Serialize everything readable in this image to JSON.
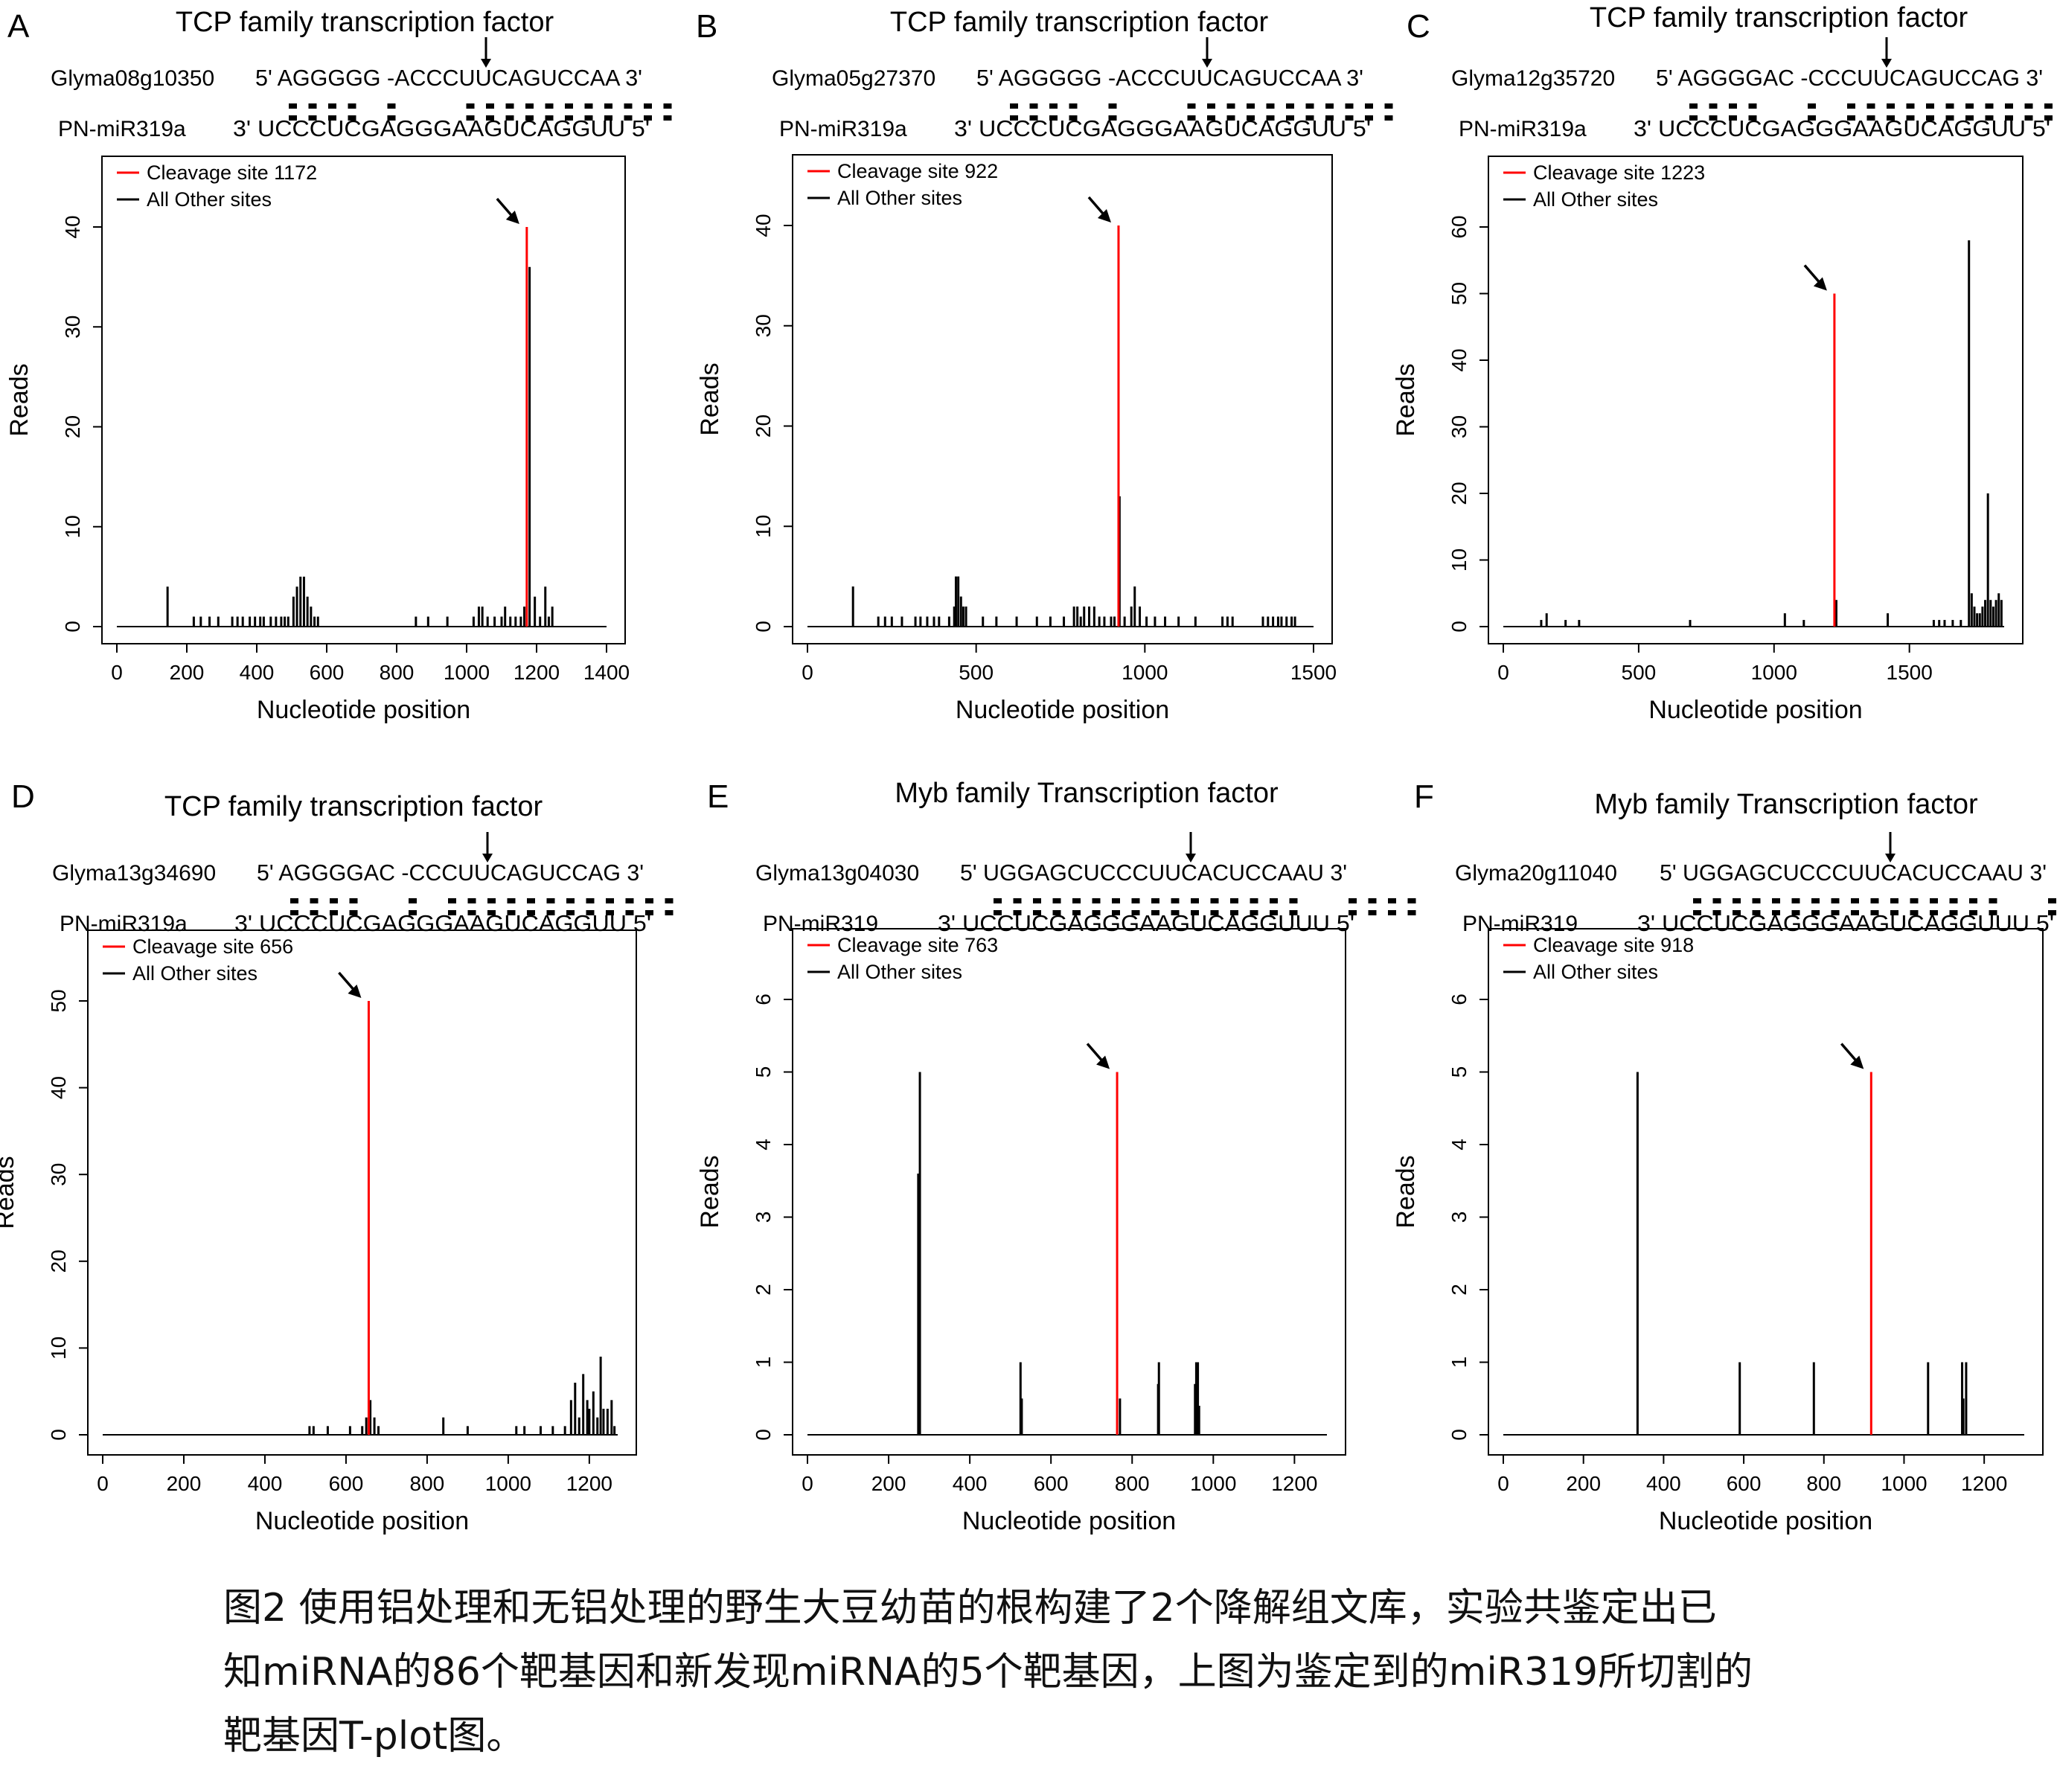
{
  "caption": {
    "lines": [
      "图2 使用铝处理和无铝处理的野生大豆幼苗的根构建了2个降解组文库，实验共鉴定出已",
      "知miRNA的86个靶基因和新发现miRNA的5个靶基因，上图为鉴定到的miR319所切割的",
      "靶基因T-plot图。"
    ]
  },
  "colors": {
    "cleavage": "#ff0000",
    "other": "#000000"
  },
  "chart_data": [
    {
      "panel": "A",
      "type": "bar",
      "title": "TCP family transcription factor",
      "gene": "Glyma08g10350",
      "target_seq": "5' AGGGGG -ACCCUUCAGUCCAA 3'",
      "mirna": "PN-miR319a",
      "mirna_seq": "3' UCCCUCGAGGGAAGUCAGGUU 5'",
      "legend": [
        "Cleavage site",
        "1172",
        "All Other sites"
      ],
      "xlabel": "Nucleotide position",
      "ylabel": "Reads",
      "xlim": [
        0,
        1400
      ],
      "ylim": [
        0,
        40
      ],
      "xticks": [
        0,
        200,
        400,
        600,
        800,
        1000,
        1200,
        1400
      ],
      "yticks": [
        0,
        10,
        20,
        30,
        40
      ],
      "cleavage": {
        "x": 1172,
        "y": 40
      },
      "other_sites": [
        [
          145,
          4
        ],
        [
          220,
          1
        ],
        [
          240,
          1
        ],
        [
          265,
          1
        ],
        [
          290,
          1
        ],
        [
          330,
          1
        ],
        [
          345,
          1
        ],
        [
          360,
          1
        ],
        [
          380,
          1
        ],
        [
          395,
          1
        ],
        [
          410,
          1
        ],
        [
          420,
          1
        ],
        [
          440,
          1
        ],
        [
          455,
          1
        ],
        [
          470,
          1
        ],
        [
          480,
          1
        ],
        [
          490,
          1
        ],
        [
          505,
          3
        ],
        [
          515,
          4
        ],
        [
          525,
          5
        ],
        [
          535,
          5
        ],
        [
          545,
          3
        ],
        [
          555,
          2
        ],
        [
          565,
          1
        ],
        [
          575,
          1
        ],
        [
          855,
          1
        ],
        [
          890,
          1
        ],
        [
          945,
          1
        ],
        [
          1020,
          1
        ],
        [
          1035,
          2
        ],
        [
          1045,
          2
        ],
        [
          1060,
          1
        ],
        [
          1080,
          1
        ],
        [
          1100,
          1
        ],
        [
          1110,
          2
        ],
        [
          1125,
          1
        ],
        [
          1140,
          1
        ],
        [
          1155,
          1
        ],
        [
          1165,
          2
        ],
        [
          1180,
          36
        ],
        [
          1195,
          3
        ],
        [
          1210,
          1
        ],
        [
          1225,
          4
        ],
        [
          1235,
          1
        ],
        [
          1245,
          2
        ]
      ],
      "legend_pos": "top-left"
    },
    {
      "panel": "B",
      "type": "bar",
      "title": "TCP family transcription factor",
      "gene": "Glyma05g27370",
      "target_seq": "5' AGGGGG -ACCCUUCAGUCCAA 3'",
      "mirna": "PN-miR319a",
      "mirna_seq": "3' UCCCUCGAGGGAAGUCAGGUU 5'",
      "legend": [
        "Cleavage site",
        "922",
        "All Other sites"
      ],
      "xlabel": "Nucleotide position",
      "ylabel": "Reads",
      "xlim": [
        0,
        1500
      ],
      "ylim": [
        0,
        40
      ],
      "xticks": [
        0,
        500,
        1000,
        1500
      ],
      "yticks": [
        0,
        10,
        20,
        30,
        40
      ],
      "cleavage": {
        "x": 922,
        "y": 40
      },
      "other_sites": [
        [
          135,
          4
        ],
        [
          210,
          1
        ],
        [
          230,
          1
        ],
        [
          250,
          1
        ],
        [
          280,
          1
        ],
        [
          320,
          1
        ],
        [
          335,
          1
        ],
        [
          355,
          1
        ],
        [
          375,
          1
        ],
        [
          390,
          1
        ],
        [
          420,
          1
        ],
        [
          435,
          2
        ],
        [
          440,
          5
        ],
        [
          447,
          5
        ],
        [
          455,
          3
        ],
        [
          462,
          2
        ],
        [
          470,
          2
        ],
        [
          520,
          1
        ],
        [
          560,
          1
        ],
        [
          620,
          1
        ],
        [
          680,
          1
        ],
        [
          720,
          1
        ],
        [
          760,
          1
        ],
        [
          790,
          2
        ],
        [
          800,
          2
        ],
        [
          810,
          1
        ],
        [
          820,
          2
        ],
        [
          835,
          2
        ],
        [
          850,
          2
        ],
        [
          865,
          1
        ],
        [
          880,
          1
        ],
        [
          900,
          1
        ],
        [
          910,
          1
        ],
        [
          925,
          13
        ],
        [
          940,
          1
        ],
        [
          960,
          2
        ],
        [
          970,
          4
        ],
        [
          985,
          2
        ],
        [
          1005,
          1
        ],
        [
          1030,
          1
        ],
        [
          1060,
          1
        ],
        [
          1100,
          1
        ],
        [
          1150,
          1
        ],
        [
          1230,
          1
        ],
        [
          1245,
          1
        ],
        [
          1260,
          1
        ],
        [
          1350,
          1
        ],
        [
          1365,
          1
        ],
        [
          1380,
          1
        ],
        [
          1395,
          1
        ],
        [
          1405,
          1
        ],
        [
          1420,
          1
        ],
        [
          1435,
          1
        ],
        [
          1445,
          1
        ]
      ],
      "legend_pos": "top-left"
    },
    {
      "panel": "C",
      "type": "bar",
      "title": "TCP family transcription factor",
      "gene": "Glyma12g35720",
      "target_seq": "5' AGGGGAC -CCCUUCAGUCCAG 3'",
      "mirna": "PN-miR319a",
      "mirna_seq": "3' UCCCUCGAGGGAAGUCAGGUU 5'",
      "legend": [
        "Cleavage site",
        "1223",
        "All Other sites"
      ],
      "xlabel": "Nucleotide position",
      "ylabel": "Reads",
      "xlim": [
        0,
        1850
      ],
      "ylim": [
        0,
        60
      ],
      "xticks": [
        0,
        500,
        1000,
        1500
      ],
      "yticks": [
        0,
        10,
        20,
        30,
        40,
        50,
        60
      ],
      "cleavage": {
        "x": 1223,
        "y": 50
      },
      "other_sites": [
        [
          140,
          1
        ],
        [
          160,
          2
        ],
        [
          230,
          1
        ],
        [
          280,
          1
        ],
        [
          690,
          1
        ],
        [
          1040,
          2
        ],
        [
          1110,
          1
        ],
        [
          1230,
          4
        ],
        [
          1420,
          2
        ],
        [
          1590,
          1
        ],
        [
          1610,
          1
        ],
        [
          1630,
          1
        ],
        [
          1660,
          1
        ],
        [
          1690,
          1
        ],
        [
          1720,
          58
        ],
        [
          1730,
          5
        ],
        [
          1740,
          3
        ],
        [
          1750,
          2
        ],
        [
          1760,
          2
        ],
        [
          1770,
          3
        ],
        [
          1780,
          4
        ],
        [
          1790,
          20
        ],
        [
          1800,
          4
        ],
        [
          1810,
          3
        ],
        [
          1820,
          4
        ],
        [
          1830,
          5
        ],
        [
          1840,
          4
        ]
      ],
      "legend_pos": "top-left"
    },
    {
      "panel": "D",
      "type": "bar",
      "title": "TCP family transcription factor",
      "gene": "Glyma13g34690",
      "target_seq": "5' AGGGGAC -CCCUUCAGUCCAG 3'",
      "mirna": "PN-miR319a",
      "mirna_seq": "3' UCCCUCGAGGGAAGUCAGGUU 5'",
      "legend": [
        "Cleavage site",
        "656",
        "All Other sites"
      ],
      "xlabel": "Nucleotide position",
      "ylabel": "Reads",
      "xlim": [
        0,
        1270
      ],
      "ylim": [
        0,
        50
      ],
      "xticks": [
        0,
        200,
        400,
        600,
        800,
        1000,
        1200
      ],
      "yticks": [
        0,
        10,
        20,
        30,
        40,
        50
      ],
      "cleavage": {
        "x": 656,
        "y": 50
      },
      "other_sites": [
        [
          510,
          1
        ],
        [
          520,
          1
        ],
        [
          555,
          1
        ],
        [
          610,
          1
        ],
        [
          640,
          1
        ],
        [
          650,
          2
        ],
        [
          660,
          4
        ],
        [
          670,
          2
        ],
        [
          680,
          1
        ],
        [
          840,
          2
        ],
        [
          900,
          1
        ],
        [
          1020,
          1
        ],
        [
          1040,
          1
        ],
        [
          1080,
          1
        ],
        [
          1110,
          1
        ],
        [
          1140,
          1
        ],
        [
          1155,
          4
        ],
        [
          1165,
          6
        ],
        [
          1175,
          2
        ],
        [
          1185,
          7
        ],
        [
          1195,
          4
        ],
        [
          1200,
          3
        ],
        [
          1210,
          5
        ],
        [
          1220,
          2
        ],
        [
          1228,
          9
        ],
        [
          1235,
          3
        ],
        [
          1245,
          3
        ],
        [
          1255,
          4
        ],
        [
          1262,
          1
        ]
      ],
      "legend_pos": "top-left"
    },
    {
      "panel": "E",
      "type": "bar",
      "title": "Myb family Transcription factor",
      "gene": "Glyma13g04030",
      "target_seq": "5' UGGAGCUCCCUUCACUCCAAU 3'",
      "mirna": "PN-miR319",
      "mirna_seq": "3' UCCUCGAGGGAAGUCAGGUUU 5'",
      "legend": [
        "Cleavage site",
        "763",
        "All Other sites"
      ],
      "xlabel": "Nucleotide position",
      "ylabel": "Reads",
      "xlim": [
        0,
        1280
      ],
      "ylim": [
        0,
        6
      ],
      "xticks": [
        0,
        200,
        400,
        600,
        800,
        1000,
        1200
      ],
      "yticks": [
        0,
        1,
        2,
        3,
        4,
        5,
        6
      ],
      "cleavage": {
        "x": 763,
        "y": 5
      },
      "other_sites": [
        [
          273,
          3.6
        ],
        [
          277,
          5
        ],
        [
          525,
          1
        ],
        [
          528,
          0.5
        ],
        [
          770,
          0.5
        ],
        [
          864,
          0.7
        ],
        [
          866,
          1
        ],
        [
          955,
          0.7
        ],
        [
          958,
          1
        ],
        [
          962,
          1
        ],
        [
          965,
          0.4
        ]
      ],
      "legend_pos": "top-left"
    },
    {
      "panel": "F",
      "type": "bar",
      "title": "Myb family Transcription factor",
      "gene": "Glyma20g11040",
      "target_seq": "5' UGGAGCUCCCUUCACUCCAAU 3'",
      "mirna": "PN-miR319",
      "mirna_seq": "3' UCCUCGAGGGAAGUCAGGUUU 5'",
      "legend": [
        "Cleavage site",
        "918",
        "All Other sites"
      ],
      "xlabel": "Nucleotide position",
      "ylabel": "Reads",
      "xlim": [
        0,
        1300
      ],
      "ylim": [
        0,
        6
      ],
      "xticks": [
        0,
        200,
        400,
        600,
        800,
        1000,
        1200
      ],
      "yticks": [
        0,
        1,
        2,
        3,
        4,
        5,
        6
      ],
      "cleavage": {
        "x": 918,
        "y": 5
      },
      "other_sites": [
        [
          335,
          5
        ],
        [
          590,
          1
        ],
        [
          775,
          1
        ],
        [
          1060,
          1
        ],
        [
          1145,
          1
        ],
        [
          1148,
          0.5
        ],
        [
          1155,
          1
        ]
      ],
      "legend_pos": "top-left"
    }
  ]
}
